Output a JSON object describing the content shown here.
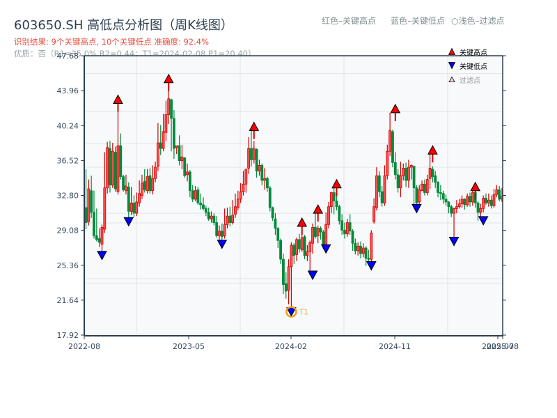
{
  "header": {
    "title": "603650.SH 高低点分析图（周K线图）",
    "result": "识别结果: 9个关键高点, 10个关键低点  准确度: 92.4%",
    "quality": "优质：否（R1=35.0%  R2=0.44；T1=2024-02-08 P1=20.40）"
  },
  "top_legend": {
    "red": "红色–关键高点",
    "blue": "蓝色–关键低点",
    "filtered": "○浅色–过滤点"
  },
  "legend": {
    "high": "关键高点",
    "low": "关键低点",
    "filtered": "过滤点"
  },
  "annotation": {
    "t1_label": "T1"
  },
  "colors": {
    "up": "#d40000",
    "down": "#008a3a",
    "high_marker": "#ff0000",
    "low_marker": "#0000ff",
    "t1_circle": "#f39c12",
    "plot_bg": "#f7f9fb",
    "axis": "#2c3e50",
    "grid": "#e1e4e8"
  },
  "chart_data": {
    "type": "candlestick",
    "title": "603650.SH 高低点分析图（周K线图）",
    "xlabel": "",
    "ylabel": "",
    "ylim": [
      17.92,
      47.68
    ],
    "yticks": [
      17.92,
      21.64,
      25.36,
      29.08,
      32.8,
      36.52,
      40.24,
      43.96,
      47.68
    ],
    "xticks": [
      {
        "label": "2022-08",
        "week": 0
      },
      {
        "label": "2023-05",
        "week": 39
      },
      {
        "label": "2024-02",
        "week": 77
      },
      {
        "label": "2024-11",
        "week": 116
      },
      {
        "label": "2025-07",
        "week": 154
      },
      {
        "label": "2025-08",
        "week": 156
      }
    ],
    "grid": true,
    "legend_position": "upper right",
    "key_highs": [
      {
        "week": 12,
        "price": 42.6
      },
      {
        "week": 31,
        "price": 44.8
      },
      {
        "week": 63,
        "price": 39.7
      },
      {
        "week": 81,
        "price": 29.5
      },
      {
        "week": 87,
        "price": 30.9
      },
      {
        "week": 94,
        "price": 33.6
      },
      {
        "week": 116,
        "price": 41.6
      },
      {
        "week": 130,
        "price": 37.2
      },
      {
        "week": 146,
        "price": 33.3
      }
    ],
    "key_lows": [
      {
        "week": 6,
        "price": 26.4
      },
      {
        "week": 16,
        "price": 30.0
      },
      {
        "week": 51,
        "price": 27.6
      },
      {
        "week": 77,
        "price": 20.4
      },
      {
        "week": 85,
        "price": 24.3
      },
      {
        "week": 90,
        "price": 27.1
      },
      {
        "week": 107,
        "price": 25.3
      },
      {
        "week": 124,
        "price": 31.4
      },
      {
        "week": 138,
        "price": 27.9
      },
      {
        "week": 149,
        "price": 30.1
      }
    ],
    "t1": {
      "date": "2024-02-08",
      "price": 20.4,
      "week": 77
    },
    "candles": [
      [
        31.5,
        29.9,
        35.6,
        29.2
      ],
      [
        30.0,
        33.5,
        34.5,
        29.6
      ],
      [
        33.3,
        31.0,
        34.9,
        30.4
      ],
      [
        31.0,
        28.5,
        33.3,
        28.2
      ],
      [
        28.5,
        28.1,
        31.4,
        27.9
      ],
      [
        28.2,
        27.8,
        29.3,
        27.3
      ],
      [
        27.6,
        29.4,
        29.7,
        26.4
      ],
      [
        29.2,
        33.6,
        37.4,
        28.8
      ],
      [
        33.6,
        37.9,
        38.5,
        33.0
      ],
      [
        37.8,
        33.9,
        38.6,
        33.1
      ],
      [
        33.9,
        37.5,
        38.4,
        33.6
      ],
      [
        37.4,
        33.5,
        38.0,
        33.2
      ],
      [
        33.2,
        38.1,
        42.6,
        32.9
      ],
      [
        38.1,
        34.8,
        39.4,
        34.5
      ],
      [
        34.8,
        33.4,
        35.0,
        33.2
      ],
      [
        33.3,
        33.8,
        35.0,
        32.9
      ],
      [
        33.7,
        31.1,
        34.2,
        30.0
      ],
      [
        31.1,
        32.0,
        33.7,
        30.7
      ],
      [
        32.0,
        30.9,
        32.8,
        30.5
      ],
      [
        30.9,
        32.1,
        33.1,
        30.6
      ],
      [
        32.0,
        33.0,
        34.4,
        31.6
      ],
      [
        32.8,
        34.1,
        35.0,
        32.4
      ],
      [
        34.3,
        33.4,
        35.6,
        33.1
      ],
      [
        33.3,
        34.8,
        35.6,
        33.0
      ],
      [
        34.9,
        33.3,
        35.7,
        33.0
      ],
      [
        33.3,
        34.6,
        36.0,
        32.9
      ],
      [
        34.6,
        35.8,
        36.4,
        34.2
      ],
      [
        35.9,
        38.4,
        40.5,
        35.4
      ],
      [
        38.4,
        37.8,
        40.3,
        37.1
      ],
      [
        37.8,
        39.6,
        41.5,
        37.5
      ],
      [
        39.5,
        41.4,
        42.9,
        38.6
      ],
      [
        41.4,
        43.1,
        44.8,
        40.4
      ],
      [
        43.0,
        41.0,
        43.1,
        37.5
      ],
      [
        41.0,
        37.8,
        41.9,
        36.7
      ],
      [
        37.9,
        38.1,
        38.0,
        37.2
      ],
      [
        38.1,
        36.5,
        39.2,
        36.0
      ],
      [
        36.5,
        36.9,
        38.2,
        35.6
      ],
      [
        36.8,
        34.9,
        36.9,
        34.7
      ],
      [
        35.0,
        35.3,
        36.2,
        34.3
      ],
      [
        35.3,
        33.3,
        35.5,
        32.6
      ],
      [
        33.3,
        32.4,
        33.9,
        32.1
      ],
      [
        32.4,
        33.3,
        33.8,
        32.2
      ],
      [
        33.4,
        32.0,
        33.7,
        31.8
      ],
      [
        32.0,
        31.8,
        33.0,
        31.3
      ],
      [
        31.8,
        31.4,
        32.6,
        31.2
      ],
      [
        31.4,
        31.0,
        31.7,
        30.6
      ],
      [
        31.0,
        30.3,
        31.5,
        30.1
      ],
      [
        30.3,
        30.6,
        31.1,
        29.9
      ],
      [
        30.6,
        29.9,
        30.9,
        29.6
      ],
      [
        29.9,
        28.5,
        30.6,
        28.3
      ],
      [
        28.5,
        29.0,
        29.6,
        28.1
      ],
      [
        29.0,
        28.4,
        29.8,
        27.6
      ],
      [
        28.5,
        29.7,
        31.4,
        28.2
      ],
      [
        29.7,
        30.6,
        31.5,
        29.3
      ],
      [
        30.6,
        29.9,
        31.6,
        29.5
      ],
      [
        29.9,
        30.7,
        32.3,
        29.7
      ],
      [
        30.8,
        31.6,
        33.0,
        30.4
      ],
      [
        31.5,
        32.4,
        33.3,
        31.2
      ],
      [
        32.4,
        33.2,
        34.1,
        32.0
      ],
      [
        33.2,
        34.0,
        35.4,
        32.8
      ],
      [
        34.0,
        35.6,
        35.5,
        33.1
      ],
      [
        35.7,
        37.8,
        39.0,
        35.1
      ],
      [
        37.8,
        36.6,
        39.7,
        35.9
      ],
      [
        36.6,
        37.8,
        38.6,
        36.2
      ],
      [
        37.7,
        35.4,
        37.8,
        34.7
      ],
      [
        35.4,
        36.0,
        36.6,
        34.9
      ],
      [
        36.0,
        34.4,
        36.2,
        33.9
      ],
      [
        34.4,
        34.6,
        35.7,
        33.4
      ],
      [
        34.6,
        33.6,
        34.8,
        33.2
      ],
      [
        33.6,
        31.5,
        33.8,
        31.1
      ],
      [
        31.5,
        30.4,
        31.6,
        30.1
      ],
      [
        30.3,
        29.3,
        30.9,
        28.6
      ],
      [
        29.3,
        28.0,
        29.4,
        27.2
      ],
      [
        28.0,
        26.0,
        28.2,
        25.5
      ],
      [
        26.0,
        23.3,
        26.6,
        22.3
      ],
      [
        23.4,
        22.6,
        24.6,
        21.8
      ],
      [
        22.7,
        25.2,
        26.0,
        21.2
      ],
      [
        25.2,
        27.5,
        27.8,
        20.4
      ],
      [
        27.5,
        26.4,
        27.7,
        25.5
      ],
      [
        26.5,
        28.1,
        28.3,
        25.8
      ],
      [
        28.1,
        27.1,
        28.7,
        26.7
      ],
      [
        27.0,
        28.3,
        29.5,
        26.8
      ],
      [
        28.4,
        26.4,
        28.6,
        26.0
      ],
      [
        26.4,
        26.8,
        27.5,
        25.8
      ],
      [
        26.8,
        27.8,
        28.0,
        24.3
      ],
      [
        27.7,
        29.4,
        29.8,
        26.6
      ],
      [
        29.4,
        28.4,
        30.9,
        28.2
      ],
      [
        28.5,
        29.3,
        29.6,
        27.7
      ],
      [
        29.3,
        28.9,
        29.5,
        28.1
      ],
      [
        28.9,
        27.5,
        29.1,
        27.1
      ],
      [
        27.5,
        29.7,
        31.0,
        27.3
      ],
      [
        29.7,
        31.6,
        32.1,
        29.3
      ],
      [
        31.6,
        33.1,
        33.2,
        30.9
      ],
      [
        33.1,
        32.2,
        33.6,
        30.8
      ],
      [
        32.2,
        31.6,
        33.1,
        31.2
      ],
      [
        31.6,
        30.1,
        31.8,
        29.7
      ],
      [
        30.1,
        29.1,
        30.8,
        28.6
      ],
      [
        29.1,
        28.7,
        29.9,
        28.2
      ],
      [
        28.7,
        29.9,
        30.3,
        28.4
      ],
      [
        29.9,
        29.0,
        30.8,
        28.6
      ],
      [
        29.0,
        27.7,
        29.2,
        26.9
      ],
      [
        27.7,
        26.9,
        28.2,
        26.5
      ],
      [
        26.9,
        27.4,
        27.8,
        26.4
      ],
      [
        27.4,
        26.6,
        27.9,
        26.1
      ],
      [
        26.6,
        27.2,
        27.7,
        26.2
      ],
      [
        27.2,
        26.1,
        27.4,
        25.3
      ],
      [
        26.1,
        26.0,
        27.0,
        25.5
      ],
      [
        26.0,
        28.8,
        29.1,
        25.6
      ],
      [
        30.0,
        31.6,
        32.5,
        29.8
      ],
      [
        31.5,
        34.9,
        35.8,
        31.2
      ],
      [
        34.9,
        33.2,
        35.4,
        32.6
      ],
      [
        33.2,
        32.0,
        33.8,
        31.6
      ],
      [
        32.0,
        34.9,
        36.0,
        31.7
      ],
      [
        34.9,
        37.5,
        38.2,
        34.5
      ],
      [
        37.5,
        39.7,
        41.6,
        37.0
      ],
      [
        39.6,
        36.3,
        39.8,
        35.8
      ],
      [
        36.3,
        35.0,
        37.4,
        34.5
      ],
      [
        35.0,
        33.6,
        35.6,
        33.1
      ],
      [
        33.6,
        34.9,
        36.4,
        32.6
      ],
      [
        34.9,
        35.7,
        36.2,
        34.4
      ],
      [
        35.7,
        34.4,
        36.3,
        33.7
      ],
      [
        34.4,
        35.8,
        36.6,
        33.6
      ],
      [
        35.8,
        36.0,
        36.1,
        34.5
      ],
      [
        35.9,
        33.6,
        36.0,
        31.4
      ],
      [
        33.6,
        32.0,
        33.9,
        31.9
      ],
      [
        32.1,
        33.4,
        33.9,
        31.9
      ],
      [
        33.3,
        34.0,
        34.4,
        33.3
      ],
      [
        34.0,
        33.1,
        34.5,
        32.8
      ],
      [
        33.1,
        34.5,
        35.0,
        32.8
      ],
      [
        34.6,
        35.7,
        37.2,
        33.5
      ],
      [
        35.6,
        34.8,
        35.9,
        34.2
      ],
      [
        34.9,
        34.2,
        35.4,
        33.6
      ],
      [
        34.2,
        33.1,
        34.3,
        32.6
      ],
      [
        33.1,
        33.0,
        33.9,
        32.3
      ],
      [
        33.0,
        32.4,
        33.3,
        31.9
      ],
      [
        32.4,
        32.1,
        32.9,
        31.7
      ],
      [
        32.1,
        31.6,
        32.2,
        30.9
      ],
      [
        31.6,
        30.9,
        31.8,
        30.5
      ],
      [
        30.9,
        31.4,
        31.5,
        27.9
      ],
      [
        31.4,
        31.6,
        32.3,
        30.9
      ],
      [
        31.6,
        31.9,
        32.4,
        31.4
      ],
      [
        31.9,
        32.4,
        32.8,
        31.5
      ],
      [
        32.4,
        31.8,
        32.5,
        31.3
      ],
      [
        31.8,
        32.7,
        33.0,
        31.6
      ],
      [
        32.7,
        32.1,
        33.1,
        31.6
      ],
      [
        32.1,
        33.1,
        33.3,
        31.7
      ],
      [
        33.1,
        32.0,
        33.2,
        31.5
      ],
      [
        32.0,
        31.0,
        32.2,
        30.1
      ],
      [
        31.0,
        31.4,
        31.9,
        30.4
      ],
      [
        31.4,
        32.5,
        32.8,
        31.0
      ],
      [
        32.5,
        32.0,
        33.0,
        31.8
      ],
      [
        32.0,
        32.3,
        33.0,
        31.6
      ],
      [
        32.3,
        31.7,
        32.8,
        31.4
      ],
      [
        31.7,
        32.9,
        33.5,
        31.5
      ],
      [
        32.9,
        33.4,
        33.9,
        32.6
      ],
      [
        33.4,
        32.4,
        33.8,
        32.2
      ],
      [
        32.4,
        32.7,
        33.6,
        32.1
      ]
    ]
  }
}
